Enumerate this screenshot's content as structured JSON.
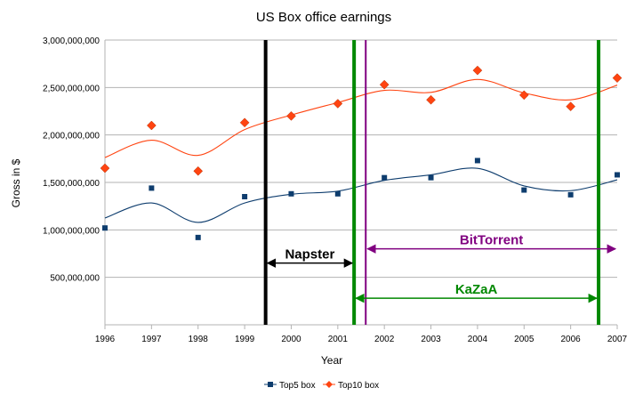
{
  "chart_data": {
    "type": "scatter",
    "title": "US Box office earnings",
    "xlabel": "Year",
    "ylabel": "Gross in $",
    "xlim": [
      1996,
      2007
    ],
    "ylim": [
      0,
      3000000000
    ],
    "x_ticks": [
      1996,
      1997,
      1998,
      1999,
      2000,
      2001,
      2002,
      2003,
      2004,
      2005,
      2006,
      2007
    ],
    "y_ticks": [
      500000000,
      1000000000,
      1500000000,
      2000000000,
      2500000000,
      3000000000
    ],
    "y_tick_labels": [
      "500,000,000",
      "1,000,000,000",
      "1,500,000,000",
      "2,000,000,000",
      "2,500,000,000",
      "3,000,000,000"
    ],
    "grid": "horizontal",
    "trend_lines": "smoothed",
    "legend_position": "bottom",
    "series": [
      {
        "name": "Top5 box",
        "color": "#0e3d6e",
        "marker": "square",
        "x": [
          1996,
          1997,
          1998,
          1999,
          2000,
          2001,
          2002,
          2003,
          2004,
          2005,
          2006,
          2007
        ],
        "values": [
          1020000000,
          1440000000,
          920000000,
          1350000000,
          1380000000,
          1380000000,
          1550000000,
          1550000000,
          1730000000,
          1420000000,
          1370000000,
          1580000000
        ]
      },
      {
        "name": "Top10 box",
        "color": "#ff4411",
        "marker": "diamond",
        "x": [
          1996,
          1997,
          1998,
          1999,
          2000,
          2001,
          2002,
          2003,
          2004,
          2005,
          2006,
          2007
        ],
        "values": [
          1650000000,
          2100000000,
          1620000000,
          2130000000,
          2200000000,
          2330000000,
          2530000000,
          2370000000,
          2680000000,
          2420000000,
          2300000000,
          2600000000
        ]
      }
    ],
    "vertical_lines": [
      {
        "name": "napster-start-line",
        "x": 1999.45,
        "color": "#000000"
      },
      {
        "name": "kazaa-start-line",
        "x": 2001.35,
        "color": "#008800"
      },
      {
        "name": "bittorrent-start-line",
        "x": 2001.6,
        "color": "#800080"
      },
      {
        "name": "kazaa-end-line",
        "x": 2006.6,
        "color": "#008800"
      }
    ],
    "annotations": [
      {
        "name": "napster",
        "label": "Napster",
        "x_start": 1999.45,
        "x_end": 2001.35,
        "y": 650000000,
        "color": "#000000",
        "arrow": "double"
      },
      {
        "name": "bittorrent",
        "label": "BitTorrent",
        "x_start": 2001.6,
        "x_end": 2007,
        "y": 800000000,
        "color": "#800080",
        "arrow": "double"
      },
      {
        "name": "kazaa",
        "label": "KaZaA",
        "x_start": 2001.35,
        "x_end": 2006.6,
        "y": 280000000,
        "color": "#008800",
        "arrow": "double"
      }
    ]
  }
}
